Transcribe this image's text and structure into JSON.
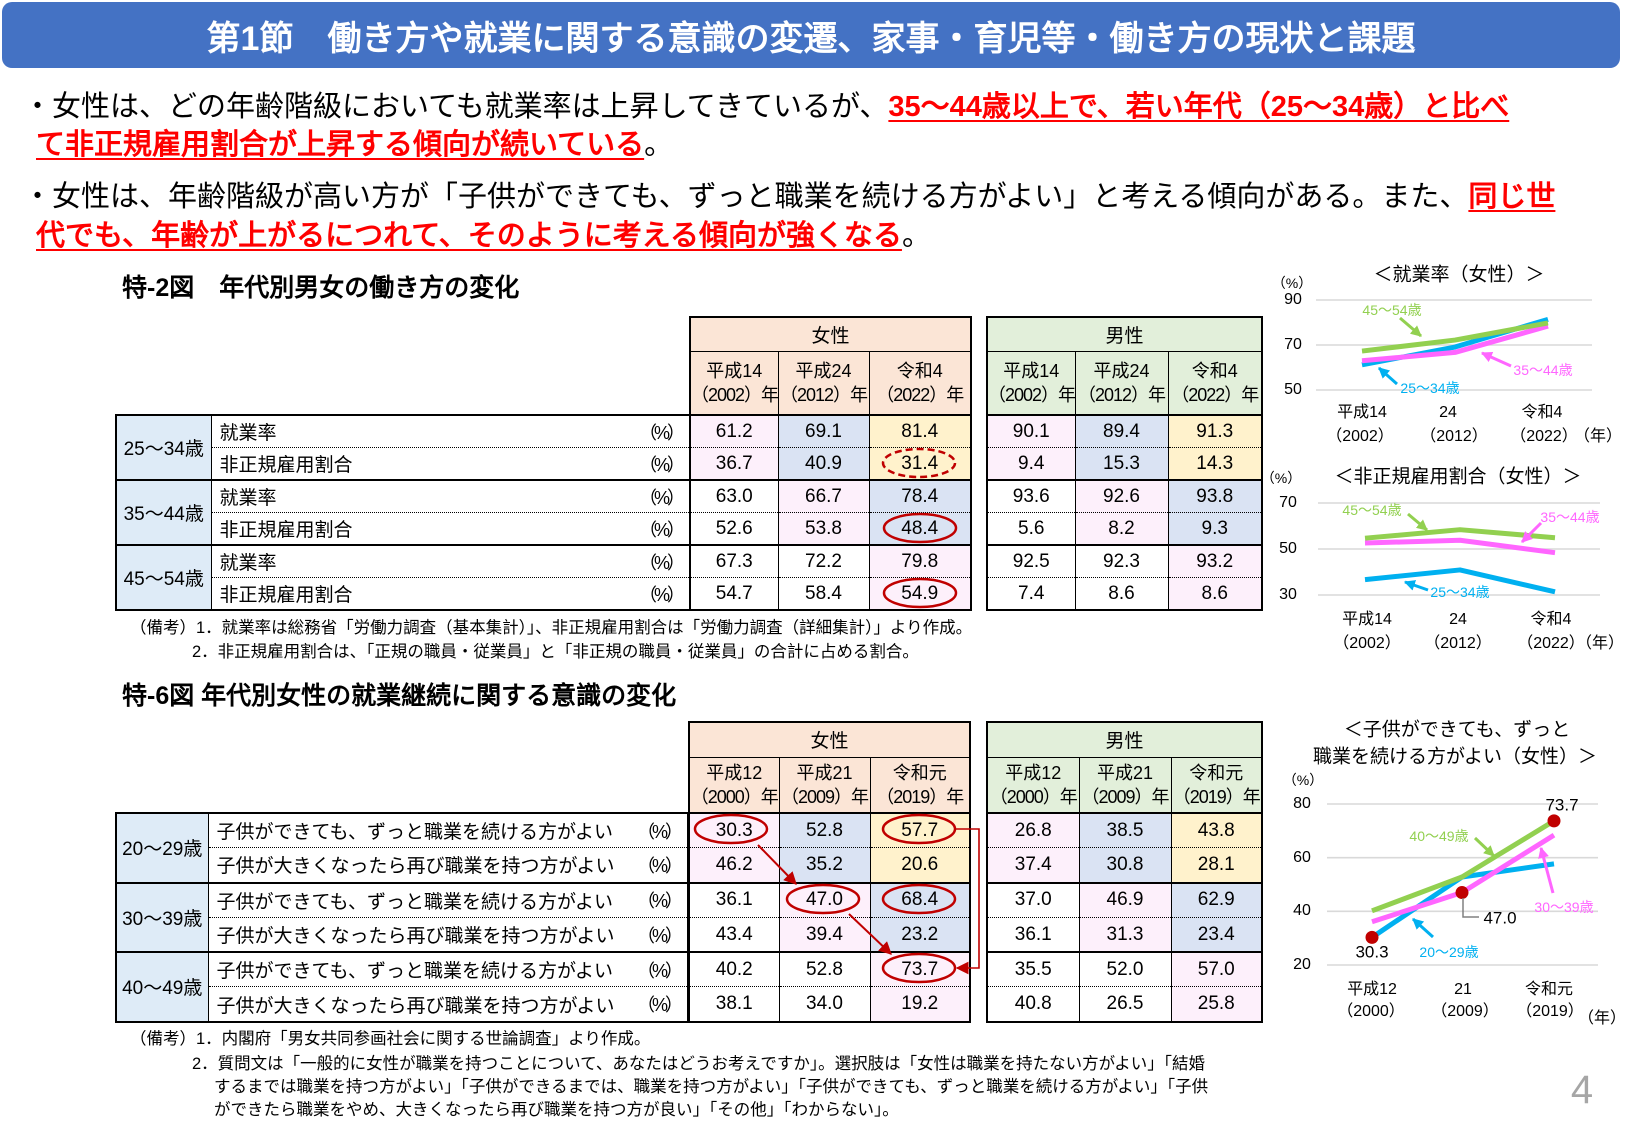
{
  "page": {
    "section_title": "第1節　働き方や就業に関する意識の変遷、家事・育児等・働き方の現状と課題",
    "page_number": "4"
  },
  "bullets": [
    {
      "line1_text": "・女性は、どの年齢階級においても就業率は上昇してきているが、",
      "line1_emph": "35～44歳以上で、若い年代（25～34歳）と比べ",
      "line2_emph": "て非正規雇用割合が上昇する傾向が続いている",
      "line2_text": "。"
    },
    {
      "line1_text": "・女性は、年齢階級が高い方が「子供ができても、ずっと職業を続ける方がよい」と考える傾向がある。また、",
      "line1_emph": "同じ世",
      "line2_emph": "代でも、年齢が上がるにつれて、そのように考える傾向が強くなる",
      "line2_text": "。"
    }
  ],
  "fig2": {
    "title": "特-2図　年代別男女の働き方の変化",
    "female_label": "女性",
    "male_label": "男性",
    "years": [
      {
        "era": "平成14",
        "year": "（2002）年"
      },
      {
        "era": "平成24",
        "year": "（2012）年"
      },
      {
        "era": "令和4",
        "year": "（2022）年"
      }
    ],
    "groups": [
      {
        "age": "25～34歳",
        "rows": [
          {
            "label": "就業率",
            "unit": "（%）",
            "female": [
              "61.2",
              "69.1",
              "81.4"
            ],
            "male": [
              "90.1",
              "89.4",
              "91.3"
            ],
            "cohort": [
              "pink",
              "blue",
              "yellow"
            ]
          },
          {
            "label": "非正規雇用割合",
            "unit": "（%）",
            "female": [
              "36.7",
              "40.9",
              "31.4"
            ],
            "male": [
              "9.4",
              "15.3",
              "14.3"
            ],
            "cohort": [
              "pink",
              "blue",
              "yellow"
            ]
          }
        ]
      },
      {
        "age": "35～44歳",
        "rows": [
          {
            "label": "就業率",
            "unit": "（%）",
            "female": [
              "63.0",
              "66.7",
              "78.4"
            ],
            "male": [
              "93.6",
              "92.6",
              "93.8"
            ],
            "cohort": [
              "none",
              "pink",
              "blue"
            ]
          },
          {
            "label": "非正規雇用割合",
            "unit": "（%）",
            "female": [
              "52.6",
              "53.8",
              "48.4"
            ],
            "male": [
              "5.6",
              "8.2",
              "9.3"
            ],
            "cohort": [
              "none",
              "pink",
              "blue"
            ]
          }
        ]
      },
      {
        "age": "45～54歳",
        "rows": [
          {
            "label": "就業率",
            "unit": "（%）",
            "female": [
              "67.3",
              "72.2",
              "79.8"
            ],
            "male": [
              "92.5",
              "92.3",
              "93.2"
            ],
            "cohort": [
              "none",
              "none",
              "pink"
            ]
          },
          {
            "label": "非正規雇用割合",
            "unit": "（%）",
            "female": [
              "54.7",
              "58.4",
              "54.9"
            ],
            "male": [
              "7.4",
              "8.6",
              "8.6"
            ],
            "cohort": [
              "none",
              "none",
              "pink"
            ]
          }
        ]
      }
    ],
    "notes": [
      "（備考）1．就業率は総務省「労働力調査（基本集計）」、非正規雇用割合は「労働力調査（詳細集計）」より作成。",
      "2．非正規雇用割合は、「正規の職員・従業員」と「非正規の職員・従業員」の合計に占める割合。"
    ]
  },
  "fig6": {
    "title": "特-6図 年代別女性の就業継続に関する意識の変化",
    "female_label": "女性",
    "male_label": "男性",
    "years": [
      {
        "era": "平成12",
        "year": "（2000）年"
      },
      {
        "era": "平成21",
        "year": "（2009）年"
      },
      {
        "era": "令和元",
        "year": "（2019）年"
      }
    ],
    "groups": [
      {
        "age": "20～29歳",
        "rows": [
          {
            "label": "子供ができても、ずっと職業を続ける方がよい",
            "unit": "（%）",
            "female": [
              "30.3",
              "52.8",
              "57.7"
            ],
            "male": [
              "26.8",
              "38.5",
              "43.8"
            ],
            "cohort": [
              "pink",
              "blue",
              "yellow"
            ]
          },
          {
            "label": "子供が大きくなったら再び職業を持つ方がよい",
            "unit": "（%）",
            "female": [
              "46.2",
              "35.2",
              "20.6"
            ],
            "male": [
              "37.4",
              "30.8",
              "28.1"
            ],
            "cohort": [
              "pink",
              "blue",
              "yellow"
            ]
          }
        ]
      },
      {
        "age": "30～39歳",
        "rows": [
          {
            "label": "子供ができても、ずっと職業を続ける方がよい",
            "unit": "（%）",
            "female": [
              "36.1",
              "47.0",
              "68.4"
            ],
            "male": [
              "37.0",
              "46.9",
              "62.9"
            ],
            "cohort": [
              "none",
              "pink",
              "blue"
            ]
          },
          {
            "label": "子供が大きくなったら再び職業を持つ方がよい",
            "unit": "（%）",
            "female": [
              "43.4",
              "39.4",
              "23.2"
            ],
            "male": [
              "36.1",
              "31.3",
              "23.4"
            ],
            "cohort": [
              "none",
              "pink",
              "blue"
            ]
          }
        ]
      },
      {
        "age": "40～49歳",
        "rows": [
          {
            "label": "子供ができても、ずっと職業を続ける方がよい",
            "unit": "（%）",
            "female": [
              "40.2",
              "52.8",
              "73.7"
            ],
            "male": [
              "35.5",
              "52.0",
              "57.0"
            ],
            "cohort": [
              "none",
              "none",
              "pink"
            ]
          },
          {
            "label": "子供が大きくなったら再び職業を持つ方がよい",
            "unit": "（%）",
            "female": [
              "38.1",
              "34.0",
              "19.2"
            ],
            "male": [
              "40.8",
              "26.5",
              "25.8"
            ],
            "cohort": [
              "none",
              "none",
              "pink"
            ]
          }
        ]
      }
    ],
    "notes": [
      "（備考）1．内閣府「男女共同参画社会に関する世論調査」より作成。",
      "2．質問文は「一般的に女性が職業を持つことについて、あなたはどうお考えですか」。選択肢は「女性は職業を持たない方がよい」「結婚",
      "するまでは職業を持つ方がよい」「子供ができるまでは、職業を持つ方がよい」「子供ができても、ずっと職業を続ける方がよい」「子供",
      "ができたら職業をやめ、大きくなったら再び職業を持つ方が良い」「その他」「わからない」。"
    ]
  },
  "colors": {
    "title_bar": "#4472c4",
    "emphasis": "#ff0000",
    "female_header": "#fbe5d6",
    "male_header": "#e2efda",
    "age_cell": "#deebf7",
    "cohort_pink": "#fdf0fb",
    "cohort_blue": "#dae3f3",
    "cohort_yellow": "#fff2cc",
    "highlight_circle": "#c00000",
    "series_green": "#92d050",
    "series_pink": "#ff66ff",
    "series_blue": "#00b0f0",
    "page_number": "#a6a6a6",
    "gridline": "#d9d9d9"
  },
  "chart_data": [
    {
      "type": "line",
      "title": "＜就業率（女性）＞",
      "ylabel": "（%）",
      "xlabel": "（年）",
      "categories": [
        "平成14（2002）",
        "24（2012）",
        "令和4（2022）"
      ],
      "category_lines": [
        [
          "平成14",
          "（2002）"
        ],
        [
          "24",
          "（2012）"
        ],
        [
          "令和4",
          "（2022）"
        ]
      ],
      "ylim": [
        50,
        90
      ],
      "yticks": [
        90,
        70,
        50
      ],
      "grid": true,
      "legend_position": "inline-labels",
      "series": [
        {
          "name": "25～34歳",
          "values": [
            61.2,
            69.1,
            81.4
          ],
          "color": "#00b0f0"
        },
        {
          "name": "35～44歳",
          "values": [
            63.0,
            66.7,
            78.4
          ],
          "color": "#ff66ff"
        },
        {
          "name": "45～54歳",
          "values": [
            67.3,
            72.2,
            79.8
          ],
          "color": "#92d050"
        }
      ]
    },
    {
      "type": "line",
      "title": "＜非正規雇用割合（女性）＞",
      "ylabel": "（%）",
      "xlabel": "（年）",
      "categories": [
        "平成14（2002）",
        "24（2012）",
        "令和4（2022）"
      ],
      "category_lines": [
        [
          "平成14",
          "（2002）"
        ],
        [
          "24",
          "（2012）"
        ],
        [
          "令和4",
          "（2022）"
        ]
      ],
      "ylim": [
        30,
        70
      ],
      "yticks": [
        70,
        50,
        30
      ],
      "grid": true,
      "legend_position": "inline-labels",
      "series": [
        {
          "name": "25～34歳",
          "values": [
            36.7,
            40.9,
            31.4
          ],
          "color": "#00b0f0"
        },
        {
          "name": "35～44歳",
          "values": [
            52.6,
            53.8,
            48.4
          ],
          "color": "#ff66ff"
        },
        {
          "name": "45～54歳",
          "values": [
            54.7,
            58.4,
            54.9
          ],
          "color": "#92d050"
        }
      ]
    },
    {
      "type": "line",
      "title": "＜子供ができても、ずっと職業を続ける方がよい（女性）＞",
      "title_lines": [
        "＜子供ができても、ずっと",
        "職業を続ける方がよい（女性）＞"
      ],
      "ylabel": "（%）",
      "xlabel": "（年）",
      "categories": [
        "平成12（2000）",
        "21（2009）",
        "令和元（2019）"
      ],
      "category_lines": [
        [
          "平成12",
          "（2000）"
        ],
        [
          "21",
          "（2009）"
        ],
        [
          "令和元",
          "（2019）"
        ]
      ],
      "ylim": [
        20,
        80
      ],
      "yticks": [
        80,
        60,
        40,
        20
      ],
      "grid": true,
      "legend_position": "inline-labels",
      "series": [
        {
          "name": "20～29歳",
          "values": [
            30.3,
            52.8,
            57.7
          ],
          "color": "#00b0f0"
        },
        {
          "name": "30～39歳",
          "values": [
            36.1,
            47.0,
            68.4
          ],
          "color": "#ff66ff"
        },
        {
          "name": "40～49歳",
          "values": [
            40.2,
            52.8,
            73.7
          ],
          "color": "#92d050"
        }
      ],
      "annotations": [
        {
          "text": "30.3",
          "series": 0,
          "index": 0
        },
        {
          "text": "47.0",
          "series": 1,
          "index": 1
        },
        {
          "text": "73.7",
          "series": 2,
          "index": 2
        }
      ]
    }
  ]
}
